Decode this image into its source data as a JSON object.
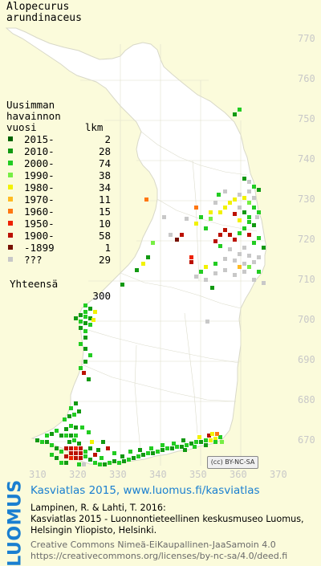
{
  "species": {
    "name_line1": "Alopecurus",
    "name_line2": "arundinaceus"
  },
  "legend": {
    "heading": [
      "Uusimman",
      "havainnon",
      "vuosi        lkm"
    ],
    "rows": [
      {
        "label": "2015-",
        "count": "2",
        "color": "#006400"
      },
      {
        "label": "2010-",
        "count": "28",
        "color": "#129912"
      },
      {
        "label": "2000-",
        "count": "74",
        "color": "#22cc22"
      },
      {
        "label": "1990-",
        "count": "38",
        "color": "#77ee44"
      },
      {
        "label": "1980-",
        "count": "34",
        "color": "#f2f200"
      },
      {
        "label": "1970-",
        "count": "11",
        "color": "#ffbb22"
      },
      {
        "label": "1960-",
        "count": "15",
        "color": "#ff7711"
      },
      {
        "label": "1950-",
        "count": "10",
        "color": "#ee2200"
      },
      {
        "label": "1900-",
        "count": "58",
        "color": "#bb1100"
      },
      {
        "label": "-1899",
        "count": "1",
        "color": "#771100"
      },
      {
        "label": "???",
        "count": "29",
        "color": "#c8c8c8"
      }
    ],
    "total_label": "Yhteensä",
    "total_count": "300"
  },
  "axis_y": [
    "770",
    "760",
    "750",
    "740",
    "730",
    "720",
    "710",
    "700",
    "690",
    "680",
    "670"
  ],
  "axis_x": [
    "310",
    "320",
    "330",
    "340",
    "350",
    "360",
    "370"
  ],
  "license_badge": "(cc) BY-NC-SA",
  "logo": "LUOMUS",
  "footer": {
    "site": "Kasviatlas 2015, www.luomus.fi/kasviatlas",
    "cite1": "Lampinen, R. & Lahti, T. 2016:",
    "cite2": "Kasviatlas 2015 - Luonnontieteellinen keskusmuseo Luomus,",
    "cite3": "Helsingin Yliopisto, Helsinki.",
    "cc1": "Creative Commons Nimeä-EiKaupallinen-JaaSamoin 4.0",
    "cc2": "https://creativecommons.org/licenses/by-nc-sa/4.0/deed.fi"
  },
  "colors": {
    "land": "#ffffff",
    "sea": "#fbfbdb",
    "axis_text": "#c8c8c8",
    "brand_blue": "#1a7fd0"
  }
}
